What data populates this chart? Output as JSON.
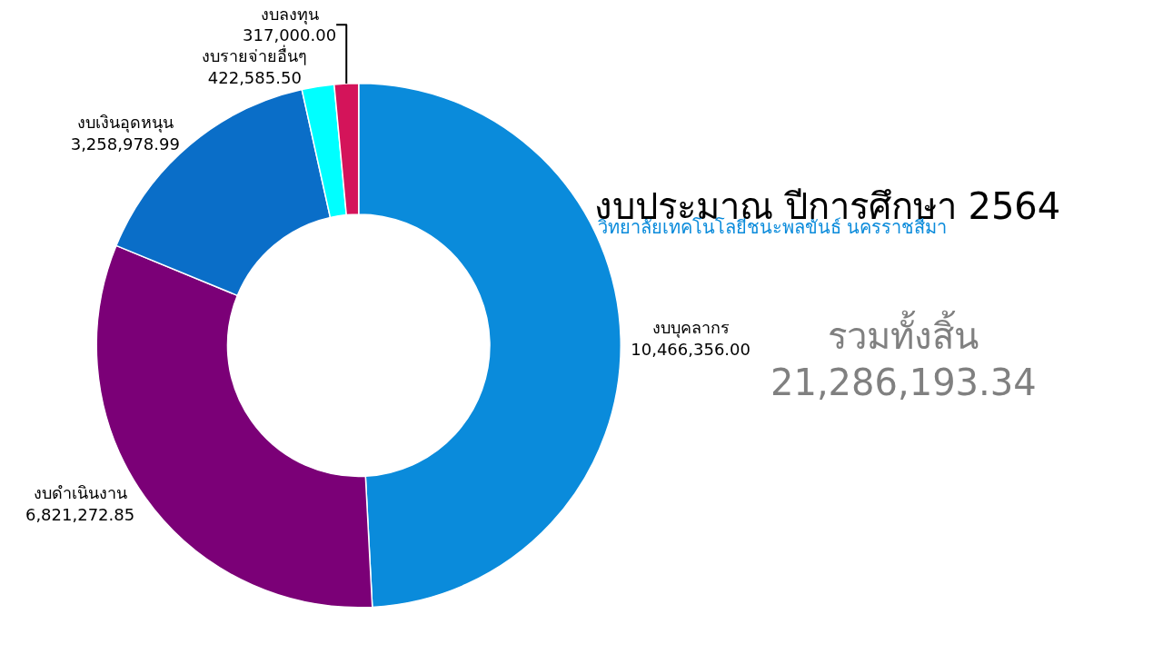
{
  "chart_data": {
    "type": "donut",
    "title": "งบประมาณ ปีการศึกษา 2564",
    "subtitle": "วิทยาลัยเทคโนโลยีชนะพลขันธ์ นครราชสีมา",
    "categories": [
      "งบบุคลากร",
      "งบดำเนินงาน",
      "งบเงินอุดหนุน",
      "งบรายจ่ายอื่นๆ",
      "งบลงทุน"
    ],
    "values": [
      10466356.0,
      6821272.85,
      3258978.99,
      422585.5,
      317000.0
    ],
    "value_labels": [
      "10,466,356.00",
      "6,821,272.85",
      "3,258,978.99",
      "422,585.50",
      "317,000.00"
    ],
    "colors": [
      "#0a8bdb",
      "#7b0077",
      "#0a6ec8",
      "#00ffff",
      "#d4145a"
    ],
    "annotations": [
      "รวมทั้งสิ้น",
      "21,286,193.34"
    ],
    "legend": false
  }
}
